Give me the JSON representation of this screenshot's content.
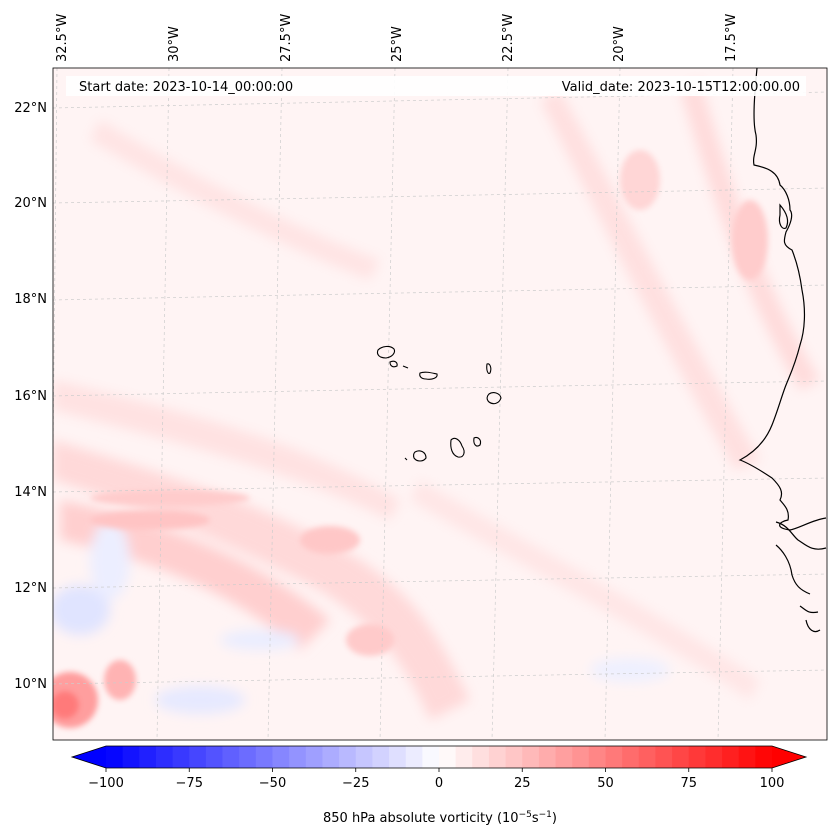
{
  "header": {
    "start_label": "Start date: 2023-10-14_00:00:00",
    "valid_label": "Valid_date: 2023-10-15T12:00:00.00"
  },
  "longitude_ticks": [
    "32.5°W",
    "30°W",
    "27.5°W",
    "25°W",
    "22.5°W",
    "20°W",
    "17.5°W"
  ],
  "latitude_ticks": [
    "22°N",
    "20°N",
    "18°N",
    "16°N",
    "14°N",
    "12°N",
    "10°N"
  ],
  "colorbar": {
    "field_name": "850 hPa absolute vorticity (10",
    "units_exponent": "−5",
    "units_tail": "s",
    "units_exponent2": "−1",
    "units_close": ")",
    "tick_labels": [
      "−100",
      "−75",
      "−50",
      "−25",
      "0",
      "25",
      "50",
      "75",
      "100"
    ],
    "min": -100,
    "max": 100,
    "extend": "both",
    "cmap": "bwr",
    "low_color": "#0000ff",
    "mid_color": "#ffffff",
    "high_color": "#ff0000"
  },
  "map": {
    "gridlines": true,
    "coastline_color": "#000000",
    "background_field": "#fff2f2"
  }
}
